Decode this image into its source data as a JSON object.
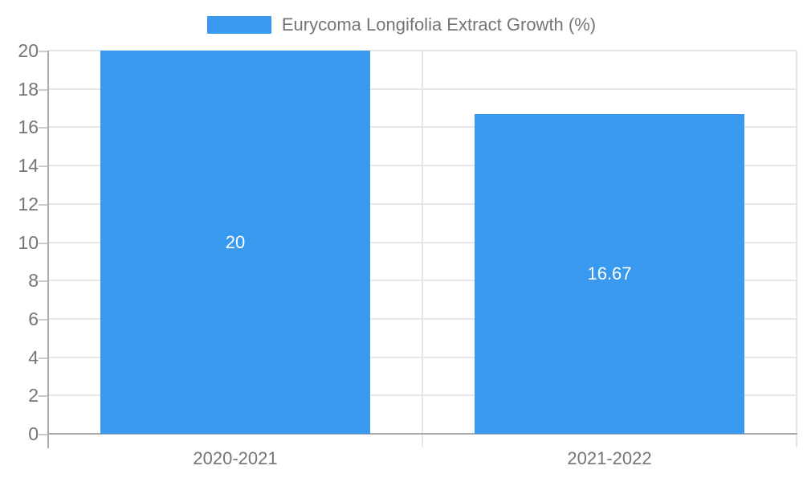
{
  "chart_data": {
    "type": "bar",
    "title": "Eurycoma Longifolia Extract Growth (%)",
    "categories": [
      "2020-2021",
      "2021-2022"
    ],
    "values": [
      20,
      16.67
    ],
    "value_labels": [
      "20",
      "16.67"
    ],
    "xlabel": "",
    "ylabel": "",
    "ylim": [
      0,
      20
    ],
    "yticks": [
      0,
      2,
      4,
      6,
      8,
      10,
      12,
      14,
      16,
      18,
      20
    ],
    "grid": "on",
    "legend_position": "top-center",
    "colors": {
      "bar": "#3899ee",
      "bar_label": "#ffffff",
      "axis_text": "#757575",
      "axis_line": "#aaaaaa",
      "grid_line": "#e6e6e6",
      "tick_line": "#cccccc",
      "background": "#ffffff"
    }
  }
}
